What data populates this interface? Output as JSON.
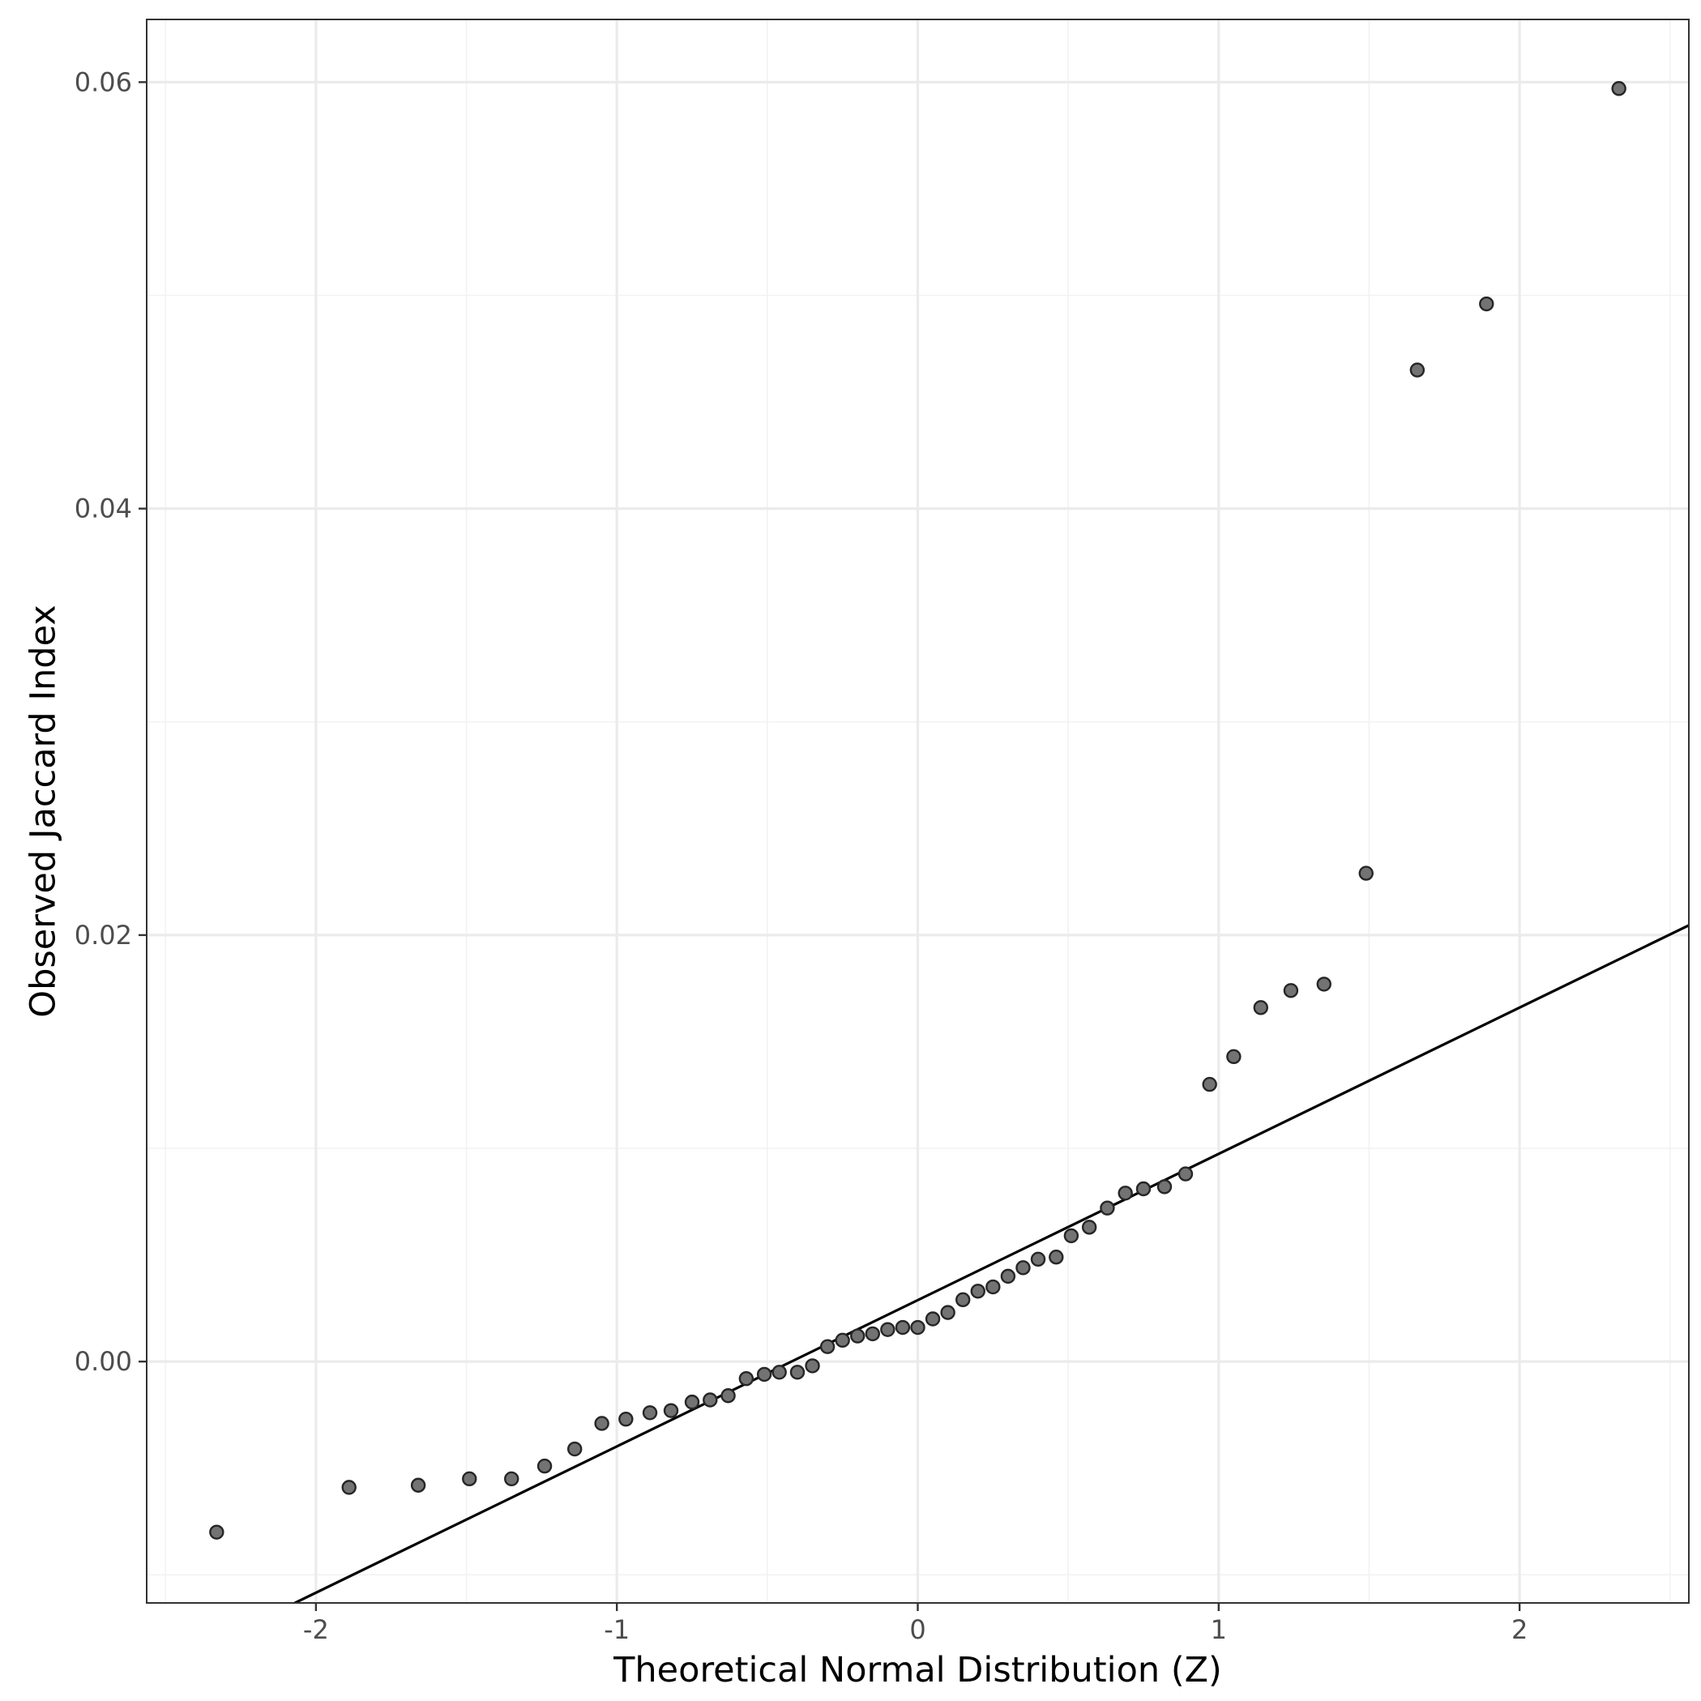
{
  "chart_data": {
    "type": "scatter",
    "title": "",
    "xlabel": "Theoretical Normal Distribution (Z)",
    "ylabel": "Observed Jaccard Index",
    "xlim": [
      -2.5625,
      2.5625
    ],
    "ylim": [
      -0.01132,
      0.06294
    ],
    "x_ticks": [
      -2,
      -1,
      0,
      1,
      2
    ],
    "x_tick_labels": [
      "-2",
      "-1",
      "0",
      "1",
      "2"
    ],
    "y_ticks": [
      0.0,
      0.02,
      0.04,
      0.06
    ],
    "y_tick_labels": [
      "0.00",
      "0.02",
      "0.04",
      "0.06"
    ],
    "grid": true,
    "reference_line": {
      "slope": 0.00686,
      "intercept": 0.00288
    },
    "points": [
      {
        "x": -2.33,
        "y": -0.008
      },
      {
        "x": -1.89,
        "y": -0.0059
      },
      {
        "x": -1.66,
        "y": -0.0058
      },
      {
        "x": -1.49,
        "y": -0.0055
      },
      {
        "x": -1.35,
        "y": -0.0055
      },
      {
        "x": -1.24,
        "y": -0.0049
      },
      {
        "x": -1.14,
        "y": -0.0041
      },
      {
        "x": -1.05,
        "y": -0.0029
      },
      {
        "x": -0.97,
        "y": -0.0027
      },
      {
        "x": -0.89,
        "y": -0.0024
      },
      {
        "x": -0.82,
        "y": -0.0023
      },
      {
        "x": -0.75,
        "y": -0.0019
      },
      {
        "x": -0.69,
        "y": -0.0018
      },
      {
        "x": -0.63,
        "y": -0.0016
      },
      {
        "x": -0.57,
        "y": -0.0008
      },
      {
        "x": -0.51,
        "y": -0.0006
      },
      {
        "x": -0.46,
        "y": -0.0005
      },
      {
        "x": -0.4,
        "y": -0.0005
      },
      {
        "x": -0.35,
        "y": -0.0002
      },
      {
        "x": -0.3,
        "y": 0.0007
      },
      {
        "x": -0.25,
        "y": 0.001
      },
      {
        "x": -0.2,
        "y": 0.0012
      },
      {
        "x": -0.15,
        "y": 0.0013
      },
      {
        "x": -0.1,
        "y": 0.0015
      },
      {
        "x": -0.05,
        "y": 0.0016
      },
      {
        "x": 0.0,
        "y": 0.0016
      },
      {
        "x": 0.05,
        "y": 0.002
      },
      {
        "x": 0.1,
        "y": 0.0023
      },
      {
        "x": 0.15,
        "y": 0.0029
      },
      {
        "x": 0.2,
        "y": 0.0033
      },
      {
        "x": 0.25,
        "y": 0.0035
      },
      {
        "x": 0.3,
        "y": 0.004
      },
      {
        "x": 0.35,
        "y": 0.0044
      },
      {
        "x": 0.4,
        "y": 0.0048
      },
      {
        "x": 0.46,
        "y": 0.0049
      },
      {
        "x": 0.51,
        "y": 0.0059
      },
      {
        "x": 0.57,
        "y": 0.0063
      },
      {
        "x": 0.63,
        "y": 0.0072
      },
      {
        "x": 0.69,
        "y": 0.0079
      },
      {
        "x": 0.75,
        "y": 0.0081
      },
      {
        "x": 0.82,
        "y": 0.0082
      },
      {
        "x": 0.89,
        "y": 0.0088
      },
      {
        "x": 0.97,
        "y": 0.013
      },
      {
        "x": 1.05,
        "y": 0.0143
      },
      {
        "x": 1.14,
        "y": 0.0166
      },
      {
        "x": 1.24,
        "y": 0.0174
      },
      {
        "x": 1.35,
        "y": 0.0177
      },
      {
        "x": 1.49,
        "y": 0.0229
      },
      {
        "x": 1.66,
        "y": 0.0465
      },
      {
        "x": 1.89,
        "y": 0.0496
      },
      {
        "x": 2.33,
        "y": 0.0597
      }
    ]
  },
  "colors": {
    "point_fill": "#737373",
    "point_stroke": "#262626",
    "reference_line": "#000000",
    "grid_major": "#ebebeb",
    "grid_minor": "#f2f2f2",
    "panel_border": "#333333",
    "tick_label": "#4d4d4d"
  }
}
